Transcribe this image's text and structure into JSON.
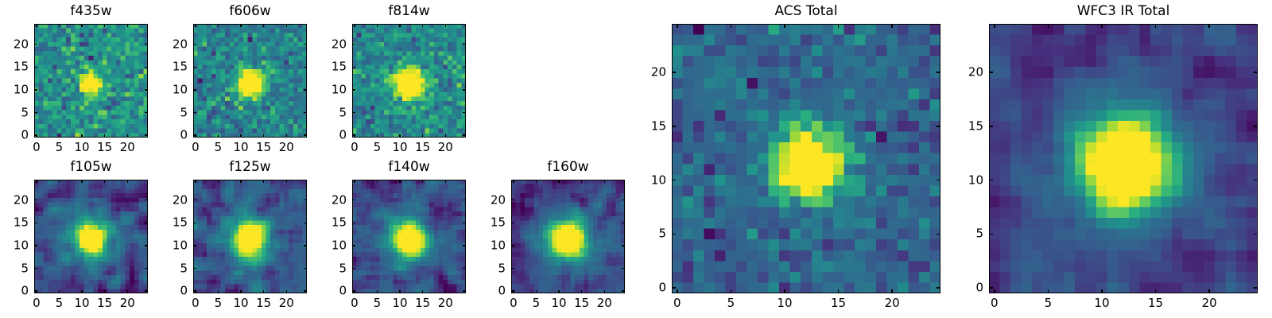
{
  "figure": {
    "background": "#ffffff",
    "axes_color": "#000000",
    "tick_label_color": "#000000",
    "colormap": "viridis",
    "viridis_stops": [
      "#440154",
      "#46327e",
      "#365c8d",
      "#2c728e",
      "#21918c",
      "#28ae80",
      "#5ec962",
      "#addc30",
      "#fde725"
    ]
  },
  "chart_data": [
    {
      "type": "heatmap",
      "title": "f435w",
      "grid_size": 25,
      "xlim": [
        -0.5,
        24.5
      ],
      "ylim": [
        -0.5,
        24.5
      ],
      "x_ticks": [
        0,
        5,
        10,
        15,
        20
      ],
      "y_ticks": [
        0,
        5,
        10,
        15,
        20
      ],
      "source": {
        "center_x": 12.1,
        "center_y": 11.2,
        "core_amp": 0.85,
        "core_sigma": 1.35,
        "halo_amp": 0.22,
        "halo_sigma": 2.3
      },
      "background": {
        "level": 0.5,
        "noise_std": 0.12,
        "smooth_passes": 0
      },
      "seed": 43501
    },
    {
      "type": "heatmap",
      "title": "f606w",
      "grid_size": 25,
      "xlim": [
        -0.5,
        24.5
      ],
      "ylim": [
        -0.5,
        24.5
      ],
      "x_ticks": [
        0,
        5,
        10,
        15,
        20
      ],
      "y_ticks": [
        0,
        5,
        10,
        15,
        20
      ],
      "source": {
        "center_x": 12.0,
        "center_y": 11.4,
        "core_amp": 0.95,
        "core_sigma": 1.7,
        "halo_amp": 0.28,
        "halo_sigma": 2.8
      },
      "background": {
        "level": 0.44,
        "noise_std": 0.11,
        "smooth_passes": 0
      },
      "seed": 60602
    },
    {
      "type": "heatmap",
      "title": "f814w",
      "grid_size": 25,
      "xlim": [
        -0.5,
        24.5
      ],
      "ylim": [
        -0.5,
        24.5
      ],
      "x_ticks": [
        0,
        5,
        10,
        15,
        20
      ],
      "y_ticks": [
        0,
        5,
        10,
        15,
        20
      ],
      "source": {
        "center_x": 12.0,
        "center_y": 11.4,
        "core_amp": 0.95,
        "core_sigma": 1.85,
        "halo_amp": 0.33,
        "halo_sigma": 3.2
      },
      "background": {
        "level": 0.46,
        "noise_std": 0.11,
        "smooth_passes": 0
      },
      "seed": 81403
    },
    {
      "type": "heatmap",
      "title": "f105w",
      "grid_size": 25,
      "xlim": [
        -0.5,
        24.5
      ],
      "ylim": [
        -0.5,
        24.5
      ],
      "x_ticks": [
        0,
        5,
        10,
        15,
        20
      ],
      "y_ticks": [
        0,
        5,
        10,
        15,
        20
      ],
      "source": {
        "center_x": 11.9,
        "center_y": 11.4,
        "core_amp": 0.92,
        "core_sigma": 2.0,
        "halo_amp": 0.45,
        "halo_sigma": 4.0
      },
      "background": {
        "level": 0.21,
        "noise_std": 0.22,
        "smooth_passes": 1
      },
      "seed": 10504
    },
    {
      "type": "heatmap",
      "title": "f125w",
      "grid_size": 25,
      "xlim": [
        -0.5,
        24.5
      ],
      "ylim": [
        -0.5,
        24.5
      ],
      "x_ticks": [
        0,
        5,
        10,
        15,
        20
      ],
      "y_ticks": [
        0,
        5,
        10,
        15,
        20
      ],
      "source": {
        "center_x": 11.8,
        "center_y": 11.4,
        "core_amp": 0.95,
        "core_sigma": 2.1,
        "halo_amp": 0.45,
        "halo_sigma": 4.2
      },
      "background": {
        "level": 0.21,
        "noise_std": 0.22,
        "smooth_passes": 1
      },
      "seed": 12505
    },
    {
      "type": "heatmap",
      "title": "f140w",
      "grid_size": 25,
      "xlim": [
        -0.5,
        24.5
      ],
      "ylim": [
        -0.5,
        24.5
      ],
      "x_ticks": [
        0,
        5,
        10,
        15,
        20
      ],
      "y_ticks": [
        0,
        5,
        10,
        15,
        20
      ],
      "source": {
        "center_x": 12.0,
        "center_y": 11.4,
        "core_amp": 0.95,
        "core_sigma": 2.1,
        "halo_amp": 0.44,
        "halo_sigma": 4.2
      },
      "background": {
        "level": 0.21,
        "noise_std": 0.2,
        "smooth_passes": 1
      },
      "seed": 14006
    },
    {
      "type": "heatmap",
      "title": "f160w",
      "grid_size": 25,
      "xlim": [
        -0.5,
        24.5
      ],
      "ylim": [
        -0.5,
        24.5
      ],
      "x_ticks": [
        0,
        5,
        10,
        15,
        20
      ],
      "y_ticks": [
        0,
        5,
        10,
        15,
        20
      ],
      "source": {
        "center_x": 11.9,
        "center_y": 11.2,
        "core_amp": 0.95,
        "core_sigma": 2.3,
        "halo_amp": 0.5,
        "halo_sigma": 4.5
      },
      "background": {
        "level": 0.16,
        "noise_std": 0.19,
        "smooth_passes": 1
      },
      "seed": 16007
    },
    {
      "type": "heatmap",
      "title": "ACS Total",
      "grid_size": 25,
      "xlim": [
        -0.5,
        24.5
      ],
      "ylim": [
        -0.5,
        24.5
      ],
      "x_ticks": [
        0,
        5,
        10,
        15,
        20
      ],
      "y_ticks": [
        0,
        5,
        10,
        15,
        20
      ],
      "source": {
        "center_x": 12.2,
        "center_y": 11.4,
        "core_amp": 0.95,
        "core_sigma": 1.9,
        "halo_amp": 0.3,
        "halo_sigma": 3.0
      },
      "background": {
        "level": 0.31,
        "noise_std": 0.09,
        "smooth_passes": 0
      },
      "seed": 90108
    },
    {
      "type": "heatmap",
      "title": "WFC3 IR Total",
      "grid_size": 25,
      "xlim": [
        -0.5,
        24.5
      ],
      "ylim": [
        -0.5,
        24.5
      ],
      "x_ticks": [
        0,
        5,
        10,
        15,
        20
      ],
      "y_ticks": [
        0,
        5,
        10,
        15,
        20
      ],
      "source": {
        "center_x": 12.1,
        "center_y": 11.5,
        "core_amp": 0.95,
        "core_sigma": 2.55,
        "halo_amp": 0.5,
        "halo_sigma": 5.0
      },
      "background": {
        "level": 0.13,
        "noise_std": 0.15,
        "smooth_passes": 1
      },
      "seed": 90209
    }
  ]
}
